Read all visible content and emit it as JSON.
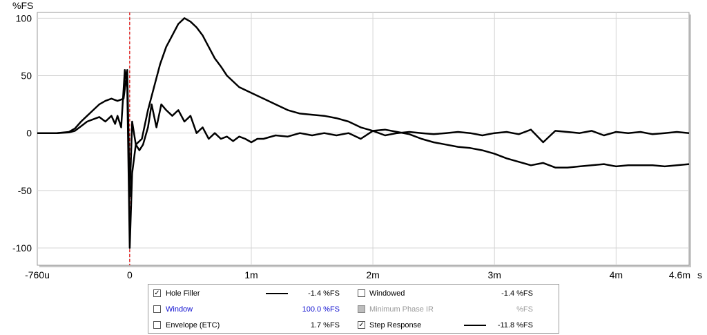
{
  "chart_data": {
    "type": "line",
    "ylabel": "%FS",
    "xunit": "s",
    "xlim": [
      -0.00076,
      0.0046
    ],
    "ylim": [
      -115,
      105
    ],
    "yticks": [
      100,
      50,
      0,
      -50,
      -100
    ],
    "ytick_labels": [
      "100",
      "50",
      "0",
      "-50",
      "-100"
    ],
    "xticks": [
      -0.00076,
      0,
      0.001,
      0.002,
      0.003,
      0.004,
      0.0046
    ],
    "xtick_labels": [
      "-760u",
      "0",
      "1m",
      "2m",
      "3m",
      "4m",
      "4.6m"
    ],
    "marker_x": 0,
    "marker_color": "#e00000",
    "grid": true,
    "series": [
      {
        "name": "Hole Filler",
        "color": "#000000",
        "points": [
          [
            -0.00076,
            0
          ],
          [
            -0.0006,
            0
          ],
          [
            -0.0005,
            0.5
          ],
          [
            -0.00045,
            2
          ],
          [
            -0.0004,
            6
          ],
          [
            -0.00035,
            10
          ],
          [
            -0.0003,
            12
          ],
          [
            -0.00025,
            14
          ],
          [
            -0.0002,
            10
          ],
          [
            -0.00015,
            15
          ],
          [
            -0.00012,
            8
          ],
          [
            -0.0001,
            15
          ],
          [
            -7e-05,
            5
          ],
          [
            -4e-05,
            55
          ],
          [
            -2e-05,
            40
          ],
          [
            0,
            -100
          ],
          [
            2e-05,
            -35
          ],
          [
            5e-05,
            -10
          ],
          [
            8e-05,
            -15
          ],
          [
            0.00011,
            -10
          ],
          [
            0.00015,
            5
          ],
          [
            0.00018,
            25
          ],
          [
            0.00022,
            5
          ],
          [
            0.00026,
            25
          ],
          [
            0.0003,
            20
          ],
          [
            0.00035,
            15
          ],
          [
            0.0004,
            20
          ],
          [
            0.00045,
            10
          ],
          [
            0.0005,
            15
          ],
          [
            0.00055,
            0
          ],
          [
            0.0006,
            5
          ],
          [
            0.00065,
            -5
          ],
          [
            0.0007,
            0
          ],
          [
            0.00075,
            -5
          ],
          [
            0.0008,
            -3
          ],
          [
            0.00085,
            -7
          ],
          [
            0.0009,
            -3
          ],
          [
            0.00095,
            -5
          ],
          [
            0.001,
            -8
          ],
          [
            0.00105,
            -5
          ],
          [
            0.0011,
            -5
          ],
          [
            0.0012,
            -2
          ],
          [
            0.0013,
            -3
          ],
          [
            0.0014,
            0
          ],
          [
            0.0015,
            -2
          ],
          [
            0.0016,
            0
          ],
          [
            0.0017,
            -2
          ],
          [
            0.0018,
            0
          ],
          [
            0.0019,
            -5
          ],
          [
            0.002,
            2
          ],
          [
            0.0021,
            -2
          ],
          [
            0.0022,
            0
          ],
          [
            0.0023,
            1
          ],
          [
            0.0024,
            0
          ],
          [
            0.0025,
            -1
          ],
          [
            0.0026,
            0
          ],
          [
            0.0027,
            1
          ],
          [
            0.0028,
            0
          ],
          [
            0.0029,
            -2
          ],
          [
            0.003,
            0
          ],
          [
            0.0031,
            1
          ],
          [
            0.0032,
            -1
          ],
          [
            0.0033,
            3
          ],
          [
            0.0034,
            -8
          ],
          [
            0.0035,
            2
          ],
          [
            0.0036,
            1
          ],
          [
            0.0037,
            0
          ],
          [
            0.0038,
            2
          ],
          [
            0.0039,
            -2
          ],
          [
            0.004,
            1
          ],
          [
            0.0041,
            0
          ],
          [
            0.0042,
            1
          ],
          [
            0.0043,
            -1
          ],
          [
            0.0044,
            0
          ],
          [
            0.0045,
            1
          ],
          [
            0.0046,
            0
          ]
        ]
      },
      {
        "name": "Step Response",
        "color": "#000000",
        "points": [
          [
            -0.00076,
            0
          ],
          [
            -0.0006,
            0
          ],
          [
            -0.0005,
            1
          ],
          [
            -0.00045,
            4
          ],
          [
            -0.0004,
            10
          ],
          [
            -0.00035,
            15
          ],
          [
            -0.0003,
            20
          ],
          [
            -0.00025,
            25
          ],
          [
            -0.0002,
            28
          ],
          [
            -0.00015,
            30
          ],
          [
            -0.0001,
            28
          ],
          [
            -5e-05,
            30
          ],
          [
            -2e-05,
            55
          ],
          [
            0,
            -55
          ],
          [
            2e-05,
            10
          ],
          [
            5e-05,
            -10
          ],
          [
            0.0001,
            -5
          ],
          [
            0.00015,
            20
          ],
          [
            0.0002,
            40
          ],
          [
            0.00025,
            60
          ],
          [
            0.0003,
            75
          ],
          [
            0.00035,
            85
          ],
          [
            0.0004,
            95
          ],
          [
            0.00045,
            100
          ],
          [
            0.0005,
            97
          ],
          [
            0.00055,
            92
          ],
          [
            0.0006,
            85
          ],
          [
            0.00065,
            75
          ],
          [
            0.0007,
            65
          ],
          [
            0.00075,
            58
          ],
          [
            0.0008,
            50
          ],
          [
            0.0009,
            40
          ],
          [
            0.001,
            35
          ],
          [
            0.0011,
            30
          ],
          [
            0.0012,
            25
          ],
          [
            0.0013,
            20
          ],
          [
            0.0014,
            17
          ],
          [
            0.0015,
            16
          ],
          [
            0.0016,
            15
          ],
          [
            0.0017,
            13
          ],
          [
            0.0018,
            10
          ],
          [
            0.0019,
            5
          ],
          [
            0.002,
            2
          ],
          [
            0.0021,
            3
          ],
          [
            0.0022,
            1
          ],
          [
            0.0023,
            -1
          ],
          [
            0.0024,
            -5
          ],
          [
            0.0025,
            -8
          ],
          [
            0.0026,
            -10
          ],
          [
            0.0027,
            -12
          ],
          [
            0.0028,
            -13
          ],
          [
            0.0029,
            -15
          ],
          [
            0.003,
            -18
          ],
          [
            0.0031,
            -22
          ],
          [
            0.0032,
            -25
          ],
          [
            0.0033,
            -28
          ],
          [
            0.0034,
            -26
          ],
          [
            0.0035,
            -30
          ],
          [
            0.0036,
            -30
          ],
          [
            0.0037,
            -29
          ],
          [
            0.0038,
            -28
          ],
          [
            0.0039,
            -27
          ],
          [
            0.004,
            -29
          ],
          [
            0.0041,
            -28
          ],
          [
            0.0042,
            -28
          ],
          [
            0.0043,
            -28
          ],
          [
            0.0044,
            -29
          ],
          [
            0.0045,
            -28
          ],
          [
            0.0046,
            -27
          ]
        ]
      }
    ]
  },
  "legend": {
    "items": [
      {
        "label": "Hole Filler",
        "checked": true,
        "value": "-1.4 %FS",
        "swatch": true
      },
      {
        "label": "Windowed",
        "checked": false,
        "value": "-1.4 %FS",
        "swatch": false
      },
      {
        "label": "Window",
        "checked": false,
        "value": "100.0 %FS",
        "swatch": false,
        "color": "#1010d0"
      },
      {
        "label": "Minimum Phase IR",
        "checked": false,
        "value": "%FS",
        "swatch": false,
        "disabled": true
      },
      {
        "label": "Envelope (ETC)",
        "checked": false,
        "value": "1.7 %FS",
        "swatch": false
      },
      {
        "label": "Step Response",
        "checked": true,
        "value": "-11.8 %FS",
        "swatch": true
      }
    ],
    "check_glyph": "✓"
  }
}
